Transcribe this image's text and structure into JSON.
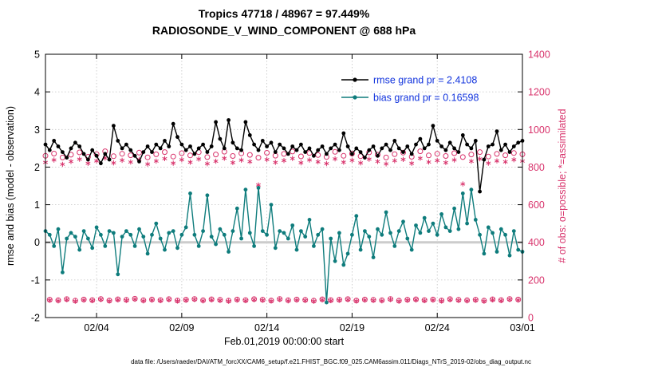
{
  "footer": {
    "text": "data file: /Users/raeder/DAI/ATM_forcXX/CAM6_setup/f.e21.FHIST_BGC.f09_025.CAM6assim.011/Diags_NTrS_2019-02/obs_diag_output.nc"
  },
  "chart_data": {
    "type": "line",
    "title": "Tropics 47718 / 48967 = 97.449%",
    "subtitle": "RADIOSONDE_V_WIND_COMPONENT @ 688 hPa",
    "time_range": {
      "start": "2019-02-01 00:00",
      "end": "2019-03-01 00:00",
      "points_per_day": 4,
      "n_points": 113
    },
    "grid": true,
    "zero_line": {
      "value": 0,
      "color": "#cccccc"
    },
    "axes": {
      "left": {
        "label": "rmse and bias (model - observation)",
        "min": -2,
        "max": 5,
        "ticks": [
          -2,
          -1,
          0,
          1,
          2,
          3,
          4,
          5
        ]
      },
      "right": {
        "label": "# of obs: o=possible; *=assimilated",
        "min": 0,
        "max": 1400,
        "ticks": [
          0,
          200,
          400,
          600,
          800,
          1000,
          1200,
          1400
        ],
        "color": "#d8326b"
      },
      "x": {
        "label": "Feb.01,2019 00:00:00 start",
        "days_total": 28,
        "ticks": [
          {
            "day": 3,
            "label": "02/04"
          },
          {
            "day": 8,
            "label": "02/09"
          },
          {
            "day": 13,
            "label": "02/14"
          },
          {
            "day": 18,
            "label": "02/19"
          },
          {
            "day": 23,
            "label": "02/24"
          },
          {
            "day": 28,
            "label": "03/01"
          }
        ]
      }
    },
    "legend": {
      "position": "top-right-inside",
      "text_color": "#1133dd",
      "items": [
        {
          "label": "rmse grand pr = 2.4108",
          "color": "#000000",
          "value": 2.4108
        },
        {
          "label": "bias grand pr = 0.16598",
          "color": "#0e7c7c",
          "value": 0.16598
        }
      ]
    },
    "series": [
      {
        "name": "rmse",
        "axis": "left",
        "color": "#000000",
        "marker": "filled-dot",
        "line": true,
        "values": [
          2.6,
          2.45,
          2.7,
          2.55,
          2.4,
          2.25,
          2.5,
          2.65,
          2.55,
          2.35,
          2.2,
          2.45,
          2.3,
          2.1,
          2.35,
          2.2,
          3.1,
          2.7,
          2.5,
          2.6,
          2.45,
          2.3,
          2.15,
          2.4,
          2.55,
          2.4,
          2.6,
          2.5,
          2.7,
          2.55,
          3.15,
          2.8,
          2.6,
          2.45,
          2.55,
          2.35,
          2.5,
          2.6,
          2.4,
          2.55,
          3.2,
          2.75,
          2.5,
          3.25,
          2.65,
          2.5,
          2.45,
          3.2,
          2.85,
          2.6,
          2.45,
          2.7,
          2.55,
          2.65,
          2.4,
          2.6,
          2.5,
          2.35,
          2.55,
          2.45,
          2.6,
          2.4,
          2.5,
          2.3,
          2.45,
          2.55,
          2.35,
          2.5,
          2.6,
          2.45,
          2.9,
          2.55,
          2.35,
          2.5,
          2.4,
          2.25,
          2.45,
          2.55,
          2.3,
          2.5,
          2.6,
          2.45,
          2.7,
          2.5,
          2.4,
          2.55,
          2.35,
          2.6,
          2.75,
          2.5,
          2.6,
          3.1,
          2.7,
          2.55,
          2.45,
          2.65,
          2.5,
          2.4,
          2.85,
          2.6,
          2.5,
          2.7,
          1.35,
          2.2,
          2.55,
          2.6,
          2.95,
          2.45,
          2.6,
          2.4,
          2.55,
          2.65,
          2.7
        ]
      },
      {
        "name": "bias",
        "axis": "left",
        "color": "#0e7c7c",
        "marker": "filled-dot",
        "line": true,
        "values": [
          0.3,
          0.2,
          -0.1,
          0.35,
          -0.8,
          0.1,
          0.25,
          0.15,
          -0.2,
          0.3,
          0.1,
          -0.15,
          0.4,
          0.2,
          -0.1,
          0.3,
          0.25,
          -0.85,
          0.15,
          0.3,
          0.2,
          -0.1,
          0.35,
          0.15,
          -0.3,
          0.2,
          0.5,
          0.1,
          -0.2,
          0.25,
          0.3,
          -0.15,
          0.2,
          0.4,
          1.3,
          0.2,
          -0.1,
          0.3,
          1.25,
          0.15,
          -0.05,
          0.35,
          0.2,
          -0.25,
          0.3,
          0.9,
          0.1,
          1.4,
          0.25,
          -0.1,
          1.45,
          0.3,
          0.2,
          1.0,
          -0.15,
          0.3,
          0.25,
          0.1,
          0.45,
          -0.2,
          0.3,
          0.15,
          0.6,
          -0.1,
          0.2,
          0.35,
          -1.6,
          0.1,
          -0.5,
          0.25,
          -0.6,
          -0.3,
          0.2,
          0.7,
          -0.2,
          0.3,
          0.15,
          -0.4,
          0.35,
          0.2,
          0.8,
          0.25,
          -0.1,
          0.3,
          0.55,
          0.1,
          -0.2,
          0.45,
          0.25,
          0.65,
          0.3,
          0.5,
          0.2,
          0.75,
          0.4,
          0.3,
          0.9,
          0.35,
          1.3,
          0.5,
          1.4,
          0.6,
          0.2,
          -0.3,
          0.4,
          0.25,
          -0.25,
          0.35,
          0.2,
          -0.35,
          0.3,
          -0.2,
          -0.25
        ]
      },
      {
        "name": "possible",
        "axis": "right",
        "color": "#d8326b",
        "marker": "open-circle",
        "line": false,
        "values": [
          860,
          95,
          872,
          92,
          851,
          98,
          866,
          90,
          878,
          96,
          855,
          93,
          869,
          99,
          884,
          91,
          858,
          97,
          871,
          94,
          863,
          100,
          877,
          92,
          852,
          96,
          868,
          93,
          880,
          98,
          856,
          91,
          874,
          95,
          862,
          99,
          879,
          92,
          853,
          97,
          867,
          94,
          882,
          90,
          859,
          96,
          873,
          93,
          865,
          98,
          850,
          95,
          876,
          91,
          861,
          99,
          870,
          92,
          883,
          96,
          857,
          94,
          875,
          90,
          864,
          97,
          854,
          93,
          881,
          95,
          860,
          98,
          872,
          91,
          858,
          96,
          878,
          94,
          866,
          92,
          851,
          99,
          869,
          90,
          877,
          95,
          855,
          97,
          884,
          93,
          862,
          96,
          871,
          91,
          859,
          98,
          874,
          94,
          853,
          92,
          867,
          95,
          880,
          90,
          856,
          97,
          870,
          93,
          863,
          99,
          875,
          96,
          868
        ]
      },
      {
        "name": "assimilated",
        "axis": "right",
        "color": "#d8326b",
        "marker": "asterisk",
        "line": false,
        "values": [
          825,
          92,
          838,
          89,
          815,
          95,
          830,
          87,
          842,
          93,
          820,
          90,
          833,
          96,
          848,
          88,
          822,
          94,
          836,
          91,
          827,
          97,
          841,
          89,
          816,
          93,
          832,
          90,
          845,
          95,
          821,
          88,
          839,
          92,
          826,
          96,
          843,
          89,
          818,
          94,
          831,
          91,
          847,
          87,
          824,
          93,
          837,
          90,
          829,
          95,
          705,
          92,
          840,
          88,
          825,
          96,
          835,
          89,
          846,
          93,
          823,
          91,
          838,
          87,
          828,
          94,
          819,
          90,
          844,
          92,
          826,
          95,
          836,
          88,
          822,
          93,
          842,
          91,
          830,
          89,
          817,
          96,
          834,
          87,
          841,
          92,
          820,
          94,
          847,
          90,
          827,
          93,
          835,
          88,
          824,
          95,
          838,
          91,
          710,
          89,
          831,
          92,
          844,
          87,
          821,
          94,
          833,
          90,
          828,
          96,
          839,
          93,
          832
        ]
      }
    ]
  }
}
